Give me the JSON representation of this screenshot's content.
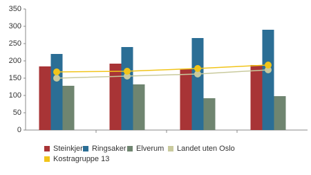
{
  "chart_data": {
    "type": "bar",
    "categories": [
      null,
      null,
      null,
      null
    ],
    "series": [
      {
        "name": "Steinkjer",
        "color": "#a83436",
        "values": [
          184,
          192,
          176,
          188
        ]
      },
      {
        "name": "Ringsaker",
        "color": "#2b6e95",
        "values": [
          220,
          240,
          266,
          290
        ]
      },
      {
        "name": "Elverum",
        "color": "#6f8570",
        "values": [
          128,
          132,
          92,
          98
        ]
      },
      {
        "name": "Landet uten Oslo",
        "color": "#c9ca9d",
        "type": "line",
        "values": [
          150,
          156,
          162,
          174
        ]
      },
      {
        "name": "Kostragruppe 13",
        "color": "#f1c419",
        "type": "line",
        "values": [
          168,
          170,
          178,
          188
        ]
      }
    ],
    "ylim": [
      0,
      350
    ],
    "yticks": [
      0,
      50,
      100,
      150,
      200,
      250,
      300,
      350
    ]
  }
}
